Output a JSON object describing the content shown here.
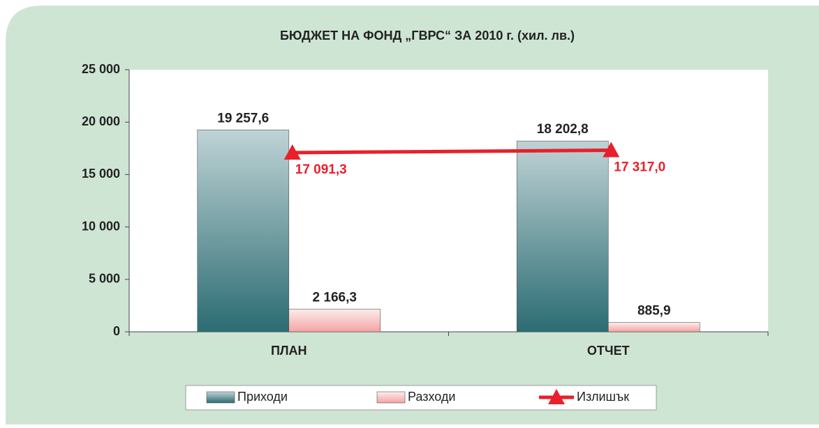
{
  "chart_data": {
    "type": "bar",
    "title": "БЮДЖЕТ НА ФОНД „ГВРС“ ЗА 2010 г. (хил. лв.)",
    "categories": [
      "ПЛАН",
      "ОТЧЕТ"
    ],
    "series": [
      {
        "name": "Приходи",
        "type": "bar",
        "color": "#2b6c73",
        "values": [
          19257.6,
          18202.8
        ],
        "value_labels": [
          "19 257,6",
          "18 202,8"
        ]
      },
      {
        "name": "Разходи",
        "type": "bar",
        "color": "#f4a3a3",
        "values": [
          2166.3,
          885.9
        ],
        "value_labels": [
          "2 166,3",
          "885,9"
        ]
      },
      {
        "name": "Излишък",
        "type": "line",
        "color": "#e8202a",
        "values": [
          17091.3,
          17317.0
        ],
        "value_labels": [
          "17 091,3",
          "17 317,0"
        ]
      }
    ],
    "ylim": [
      0,
      25000
    ],
    "yticks": [
      0,
      {
        "value": 5000,
        "label": "5 000"
      },
      {
        "value": 10000,
        "label": "10 000"
      },
      {
        "value": 15000,
        "label": "15 000"
      },
      {
        "value": 20000,
        "label": "20 000"
      },
      {
        "value": 25000,
        "label": "25 000"
      }
    ],
    "legend": "bottom"
  }
}
